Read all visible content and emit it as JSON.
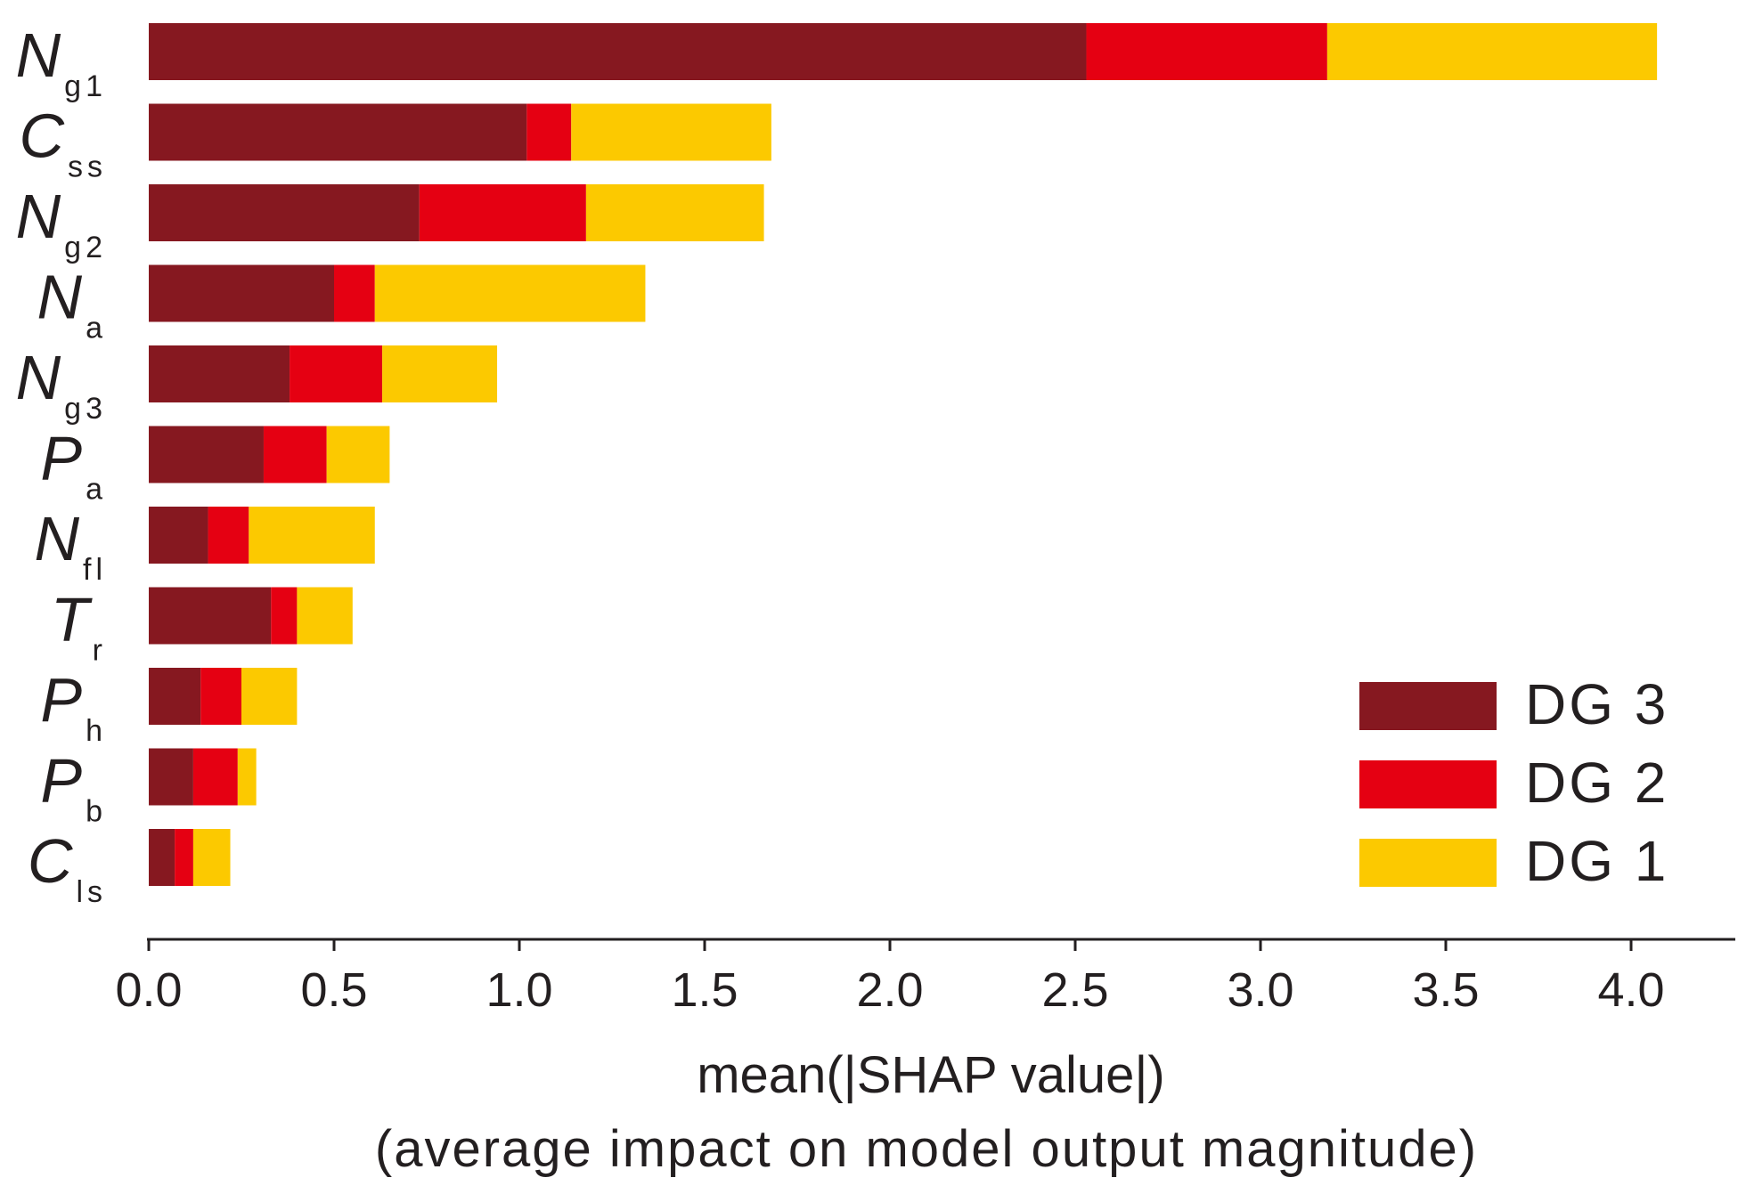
{
  "chart_data": {
    "type": "bar",
    "orientation": "horizontal",
    "stacked": true,
    "categories": [
      {
        "main": "N",
        "sub": "g1"
      },
      {
        "main": "C",
        "sub": "ss"
      },
      {
        "main": "N",
        "sub": "g2"
      },
      {
        "main": "N",
        "sub": "a"
      },
      {
        "main": "N",
        "sub": "g3"
      },
      {
        "main": "P",
        "sub": "a"
      },
      {
        "main": "N",
        "sub": "fl"
      },
      {
        "main": "T",
        "sub": "r"
      },
      {
        "main": "P",
        "sub": "h"
      },
      {
        "main": "P",
        "sub": "b"
      },
      {
        "main": "C",
        "sub": "ls"
      }
    ],
    "series": [
      {
        "name": "DG 3",
        "color": "#861820",
        "values": [
          2.53,
          1.02,
          0.73,
          0.5,
          0.38,
          0.31,
          0.16,
          0.33,
          0.14,
          0.12,
          0.07
        ]
      },
      {
        "name": "DG 2",
        "color": "#e50012",
        "values": [
          0.65,
          0.12,
          0.45,
          0.11,
          0.25,
          0.17,
          0.11,
          0.07,
          0.11,
          0.12,
          0.05
        ]
      },
      {
        "name": "DG 1",
        "color": "#fcc900",
        "values": [
          0.89,
          0.54,
          0.48,
          0.73,
          0.31,
          0.17,
          0.34,
          0.15,
          0.15,
          0.05,
          0.1
        ]
      }
    ],
    "legend_order": [
      "DG 3",
      "DG 2",
      "DG 1"
    ],
    "legend_position": "bottom-right",
    "xlabel": "mean(|SHAP value|)",
    "xlabel2": "(average impact on model output magnitude)",
    "xticks": [
      "0.0",
      "0.5",
      "1.0",
      "1.5",
      "2.0",
      "2.5",
      "3.0",
      "3.5",
      "4.0"
    ],
    "xlim": [
      0,
      4.3
    ],
    "grid": false
  }
}
